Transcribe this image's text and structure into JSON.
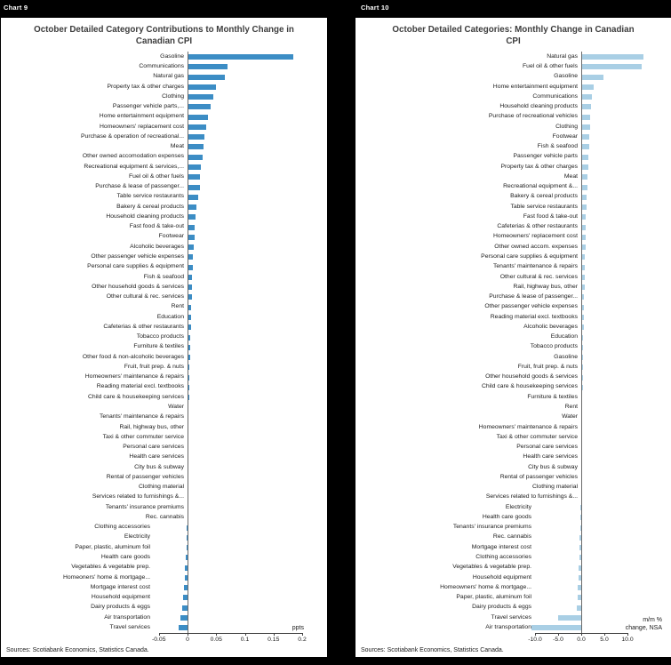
{
  "figure": {
    "background": "#000000",
    "panel_background": "#ffffff",
    "tag_color": "#ffffff"
  },
  "chart_data": [
    {
      "type": "bar",
      "orientation": "horizontal",
      "tag": "Chart 9",
      "title": "October Detailed Category Contributions to Monthly Change in Canadian CPI",
      "axis_unit_label": "ppts",
      "source": "Sources: Scotiabank Economics, Statistics Canada.",
      "bar_color": "#3c8dc5",
      "xlim": [
        -0.05,
        0.2
      ],
      "grid": false,
      "ticks": [
        {
          "value": -0.05,
          "label": "-0.05"
        },
        {
          "value": 0,
          "label": "0"
        },
        {
          "value": 0.05,
          "label": "0.05"
        },
        {
          "value": 0.1,
          "label": "0.1"
        },
        {
          "value": 0.15,
          "label": "0.15"
        },
        {
          "value": 0.2,
          "label": "0.2"
        }
      ],
      "categories": [
        "Gasoline",
        "Communications",
        "Natural gas",
        "Property tax & other charges",
        "Clothing",
        "Passenger vehicle parts,...",
        "Home entertainment equipment",
        "Homeowners' replacement cost",
        "Purchase & operation of recreational...",
        "Meat",
        "Other owned accomodation expenses",
        "Recreational equipment & services,...",
        "Fuel oil & other fuels",
        "Purchase & lease of passenger...",
        "Table service restaurants",
        "Bakery & cereal products",
        "Household cleaning products",
        "Fast food & take-out",
        "Footwear",
        "Alcoholic beverages",
        "Other passenger vehicle expenses",
        "Personal care supplies & equipment",
        "Fish & seafood",
        "Other household goods & services",
        "Other cultural & rec. services",
        "Rent",
        "Education",
        "Cafeterias & other restaurants",
        "Tobacco products",
        "Furniture & textiles",
        "Other food & non-alcoholic beverages",
        "Fruit, fruit prep. & nuts",
        "Homeowners' maintenance & repairs",
        "Reading material excl. textbooks",
        "Child care & housekeeping services",
        "Water",
        "Tenants' maintenance & repairs",
        "Rail, highway bus, other",
        "Taxi & other commuter service",
        "Personal care services",
        "Health care services",
        "City bus & subway",
        "Rental of passenger vehicles",
        "Clothing material",
        "Services related to furnishings &...",
        "Tenants' insurance premiums",
        "Rec. cannabis",
        "Clothing accessories",
        "Electricity",
        "Paper, plastic, aluminum foil",
        "Health care goods",
        "Vegetables & vegetable prep.",
        "Homeoners' home & mortgage...",
        "Mortgage interest cost",
        "Household equipment",
        "Dairy products & eggs",
        "Air transportation",
        "Travel services"
      ],
      "values": [
        0.185,
        0.07,
        0.065,
        0.05,
        0.045,
        0.04,
        0.036,
        0.033,
        0.03,
        0.028,
        0.026,
        0.024,
        0.022,
        0.021,
        0.018,
        0.016,
        0.014,
        0.013,
        0.012,
        0.011,
        0.01,
        0.009,
        0.008,
        0.0075,
        0.007,
        0.0065,
        0.006,
        0.0055,
        0.005,
        0.0045,
        0.004,
        0.0035,
        0.003,
        0.003,
        0.0025,
        0.002,
        0.002,
        0.0015,
        0.0015,
        0.001,
        0.001,
        0.001,
        0.001,
        0.0008,
        0.0005,
        0.0005,
        0.0003,
        -0.001,
        -0.0012,
        -0.002,
        -0.003,
        -0.004,
        -0.005,
        -0.007,
        -0.008,
        -0.01,
        -0.013,
        -0.016
      ]
    },
    {
      "type": "bar",
      "orientation": "horizontal",
      "tag": "Chart 10",
      "title": "October Detailed Categories: Monthly Change in Canadian CPI",
      "axis_unit_label": "m/m %\nchange, NSA",
      "source": "Sources: Scotiabank Economics, Statistics Canada.",
      "bar_color": "#a9cfe5",
      "xlim": [
        -10,
        10
      ],
      "grid": false,
      "ticks": [
        {
          "value": -10,
          "label": "-10.0"
        },
        {
          "value": -5,
          "label": "-5.0"
        },
        {
          "value": 0,
          "label": "0.0"
        },
        {
          "value": 5,
          "label": "5.0"
        },
        {
          "value": 10,
          "label": "10.0"
        }
      ],
      "categories": [
        "Natural gas",
        "Fuel oil & other fuels",
        "Gasoline",
        "Home entertainment equipment",
        "Communications",
        "Household cleaning products",
        "Purchase of recreational vehicles",
        "Clothing",
        "Footwear",
        "Fish & seafood",
        "Passenger vehicle parts",
        "Property tax & other charges",
        "Meat",
        "Recreational equipment &...",
        "Bakery & cereal products",
        "Table service restaurants",
        "Fast food & take-out",
        "Cafeterias & other restaurants",
        "Homeowners' replacement cost",
        "Other owned accom. expenses",
        "Personal care supplies & equipment",
        "Tenants' maintenance & repairs",
        "Other cultural & rec. services",
        "Rail, highway bus, other",
        "Purchase & lease of passenger...",
        "Other passenger vehicle expenses",
        "Reading material excl. textbooks",
        "Alcoholic beverages",
        "Education",
        "Tobacco products",
        "Gasoline",
        "Fruit, fruit prep. & nuts",
        "Other household goods & services",
        "Child care & housekeeping services",
        "Furniture & textiles",
        "Rent",
        "Water",
        "Homeowners' maintenance & repairs",
        "Taxi & other commuter service",
        "Personal care services",
        "Health care services",
        "City bus & subway",
        "Rental of passenger vehicles",
        "Clothing material",
        "Services related to furnishings &...",
        "Electricity",
        "Health care goods",
        "Tenants' insurance premiums",
        "Rec. cannabis",
        "Mortgage interest cost",
        "Clothing accessories",
        "Vegetables & vegetable prep.",
        "Household equipment",
        "Homeowners' home & mortgage...",
        "Paper, plastic, aluminum foil",
        "Dairy products & eggs",
        "Travel services",
        "Air transportation"
      ],
      "values": [
        13.5,
        13.0,
        4.8,
        2.6,
        2.4,
        2.2,
        2.0,
        1.9,
        1.8,
        1.7,
        1.6,
        1.5,
        1.4,
        1.3,
        1.2,
        1.1,
        1.0,
        1.0,
        0.9,
        0.9,
        0.8,
        0.8,
        0.7,
        0.7,
        0.6,
        0.6,
        0.5,
        0.5,
        0.4,
        0.4,
        0.35,
        0.3,
        0.3,
        0.3,
        0.25,
        0.2,
        0.2,
        0.2,
        0.15,
        0.1,
        0.1,
        0.1,
        0.1,
        0.08,
        0.05,
        -0.1,
        -0.2,
        -0.2,
        -0.3,
        -0.3,
        -0.4,
        -0.5,
        -0.6,
        -0.7,
        -0.8,
        -1.0,
        -5.0,
        -10.8
      ]
    }
  ]
}
